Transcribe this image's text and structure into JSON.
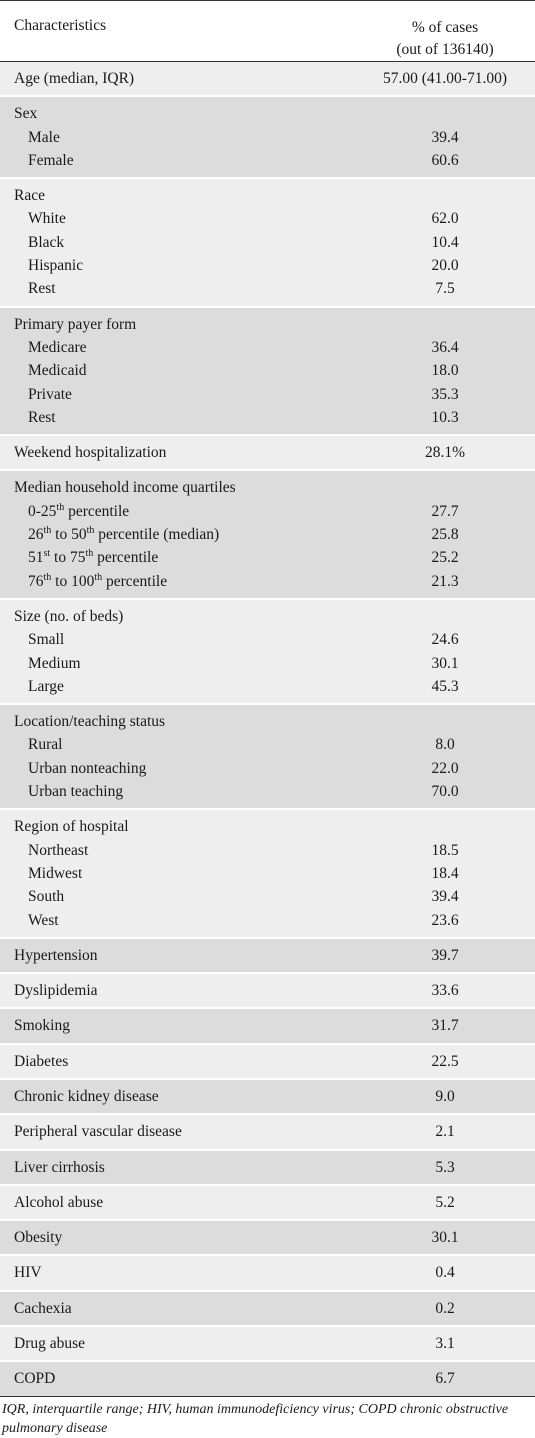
{
  "header": {
    "characteristics": "Characteristics",
    "value_line1": "% of cases",
    "value_line2": "(out of 136140)"
  },
  "groups": [
    {
      "shade": "light",
      "rows": [
        {
          "label": "Age (median, IQR)",
          "value": "57.00 (41.00-71.00)",
          "sub": false
        }
      ]
    },
    {
      "shade": "shade",
      "rows": [
        {
          "label": "Sex",
          "value": "",
          "sub": false
        },
        {
          "label": "Male",
          "value": "39.4",
          "sub": true
        },
        {
          "label": "Female",
          "value": "60.6",
          "sub": true
        }
      ]
    },
    {
      "shade": "light",
      "rows": [
        {
          "label": "Race",
          "value": "",
          "sub": false
        },
        {
          "label": "White",
          "value": "62.0",
          "sub": true
        },
        {
          "label": "Black",
          "value": "10.4",
          "sub": true
        },
        {
          "label": "Hispanic",
          "value": "20.0",
          "sub": true
        },
        {
          "label": "Rest",
          "value": "7.5",
          "sub": true
        }
      ]
    },
    {
      "shade": "shade",
      "rows": [
        {
          "label": "Primary payer form",
          "value": "",
          "sub": false
        },
        {
          "label": "Medicare",
          "value": "36.4",
          "sub": true
        },
        {
          "label": "Medicaid",
          "value": "18.0",
          "sub": true
        },
        {
          "label": "Private",
          "value": "35.3",
          "sub": true
        },
        {
          "label": "Rest",
          "value": "10.3",
          "sub": true
        }
      ]
    },
    {
      "shade": "light",
      "rows": [
        {
          "label": "Weekend hospitalization",
          "value": "28.1%",
          "sub": false
        }
      ]
    },
    {
      "shade": "shade",
      "rows": [
        {
          "label": "Median household income quartiles",
          "value": "",
          "sub": false
        },
        {
          "label": "0-25",
          "label_sup": "th",
          "label_after": " percentile",
          "value": "27.7",
          "sub": true
        },
        {
          "label": "26",
          "label_sup": "th",
          "label_after": " to 50",
          "label_sup2": "th",
          "label_after2": " percentile (median)",
          "value": "25.8",
          "sub": true
        },
        {
          "label": "51",
          "label_sup": "st",
          "label_after": " to 75",
          "label_sup2": "th",
          "label_after2": " percentile",
          "value": "25.2",
          "sub": true
        },
        {
          "label": "76",
          "label_sup": "th",
          "label_after": " to 100",
          "label_sup2": "th",
          "label_after2": " percentile",
          "value": "21.3",
          "sub": true
        }
      ]
    },
    {
      "shade": "light",
      "rows": [
        {
          "label": "Size (no. of beds)",
          "value": "",
          "sub": false
        },
        {
          "label": "Small",
          "value": "24.6",
          "sub": true
        },
        {
          "label": "Medium",
          "value": "30.1",
          "sub": true
        },
        {
          "label": "Large",
          "value": "45.3",
          "sub": true
        }
      ]
    },
    {
      "shade": "shade",
      "rows": [
        {
          "label": "Location/teaching status",
          "value": "",
          "sub": false
        },
        {
          "label": "Rural",
          "value": "8.0",
          "sub": true
        },
        {
          "label": "Urban nonteaching",
          "value": "22.0",
          "sub": true
        },
        {
          "label": "Urban teaching",
          "value": "70.0",
          "sub": true
        }
      ]
    },
    {
      "shade": "light",
      "rows": [
        {
          "label": "Region of hospital",
          "value": "",
          "sub": false
        },
        {
          "label": "Northeast",
          "value": "18.5",
          "sub": true
        },
        {
          "label": "Midwest",
          "value": "18.4",
          "sub": true
        },
        {
          "label": "South",
          "value": "39.4",
          "sub": true
        },
        {
          "label": "West",
          "value": "23.6",
          "sub": true
        }
      ]
    },
    {
      "shade": "shade",
      "rows": [
        {
          "label": "Hypertension",
          "value": "39.7",
          "sub": false
        }
      ]
    },
    {
      "shade": "light",
      "rows": [
        {
          "label": "Dyslipidemia",
          "value": "33.6",
          "sub": false
        }
      ]
    },
    {
      "shade": "shade",
      "rows": [
        {
          "label": "Smoking",
          "value": "31.7",
          "sub": false
        }
      ]
    },
    {
      "shade": "light",
      "rows": [
        {
          "label": "Diabetes",
          "value": "22.5",
          "sub": false
        }
      ]
    },
    {
      "shade": "shade",
      "rows": [
        {
          "label": "Chronic kidney disease",
          "value": "9.0",
          "sub": false
        }
      ]
    },
    {
      "shade": "light",
      "rows": [
        {
          "label": "Peripheral vascular disease",
          "value": "2.1",
          "sub": false
        }
      ]
    },
    {
      "shade": "shade",
      "rows": [
        {
          "label": "Liver cirrhosis",
          "value": "5.3",
          "sub": false
        }
      ]
    },
    {
      "shade": "light",
      "rows": [
        {
          "label": "Alcohol abuse",
          "value": "5.2",
          "sub": false
        }
      ]
    },
    {
      "shade": "shade",
      "rows": [
        {
          "label": "Obesity",
          "value": "30.1",
          "sub": false
        }
      ]
    },
    {
      "shade": "light",
      "rows": [
        {
          "label": "HIV",
          "value": "0.4",
          "sub": false
        }
      ]
    },
    {
      "shade": "shade",
      "rows": [
        {
          "label": "Cachexia",
          "value": "0.2",
          "sub": false
        }
      ]
    },
    {
      "shade": "light",
      "rows": [
        {
          "label": "Drug abuse",
          "value": "3.1",
          "sub": false
        }
      ]
    },
    {
      "shade": "shade",
      "rows": [
        {
          "label": "COPD",
          "value": "6.7",
          "sub": false
        }
      ]
    }
  ],
  "footnote": "IQR, interquartile range; HIV, human immunodeficiency virus; COPD chronic obstructive pulmonary disease"
}
